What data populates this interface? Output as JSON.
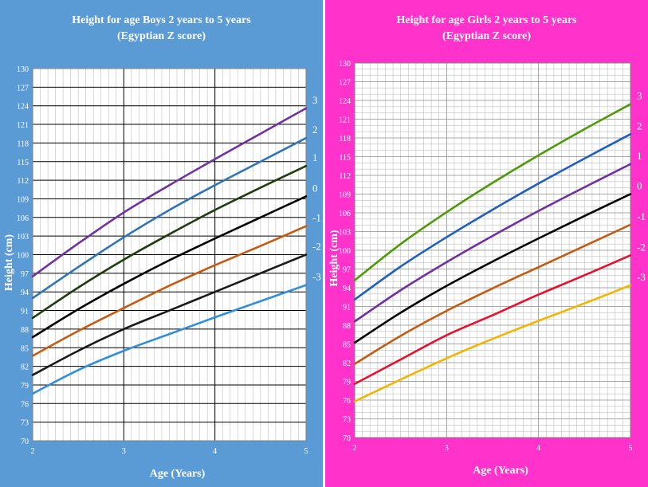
{
  "colors": {
    "boys_panel_bg": "#5B9BD5",
    "girls_panel_bg": "#FF33CC",
    "plot_bg": "#ffffff",
    "grid_major": "#000000",
    "grid_minor": "#bfbfbf"
  },
  "chart_data": [
    {
      "type": "line",
      "title": "Height for age Boys 2 years to 5 years",
      "subtitle": "(Egyptian Z score)",
      "xlabel": "Age (Years)",
      "ylabel": "Height  (cm)",
      "xlim": [
        2,
        5
      ],
      "ylim": [
        70,
        130
      ],
      "x_ticks": [
        "2",
        "3",
        "4",
        "5"
      ],
      "y_ticks": [
        "70",
        "73",
        "76",
        "79",
        "82",
        "85",
        "88",
        "91",
        "94",
        "97",
        "100",
        "103",
        "106",
        "109",
        "112",
        "115",
        "118",
        "121",
        "124",
        "127",
        "130"
      ],
      "grid": true,
      "minor_x_lines_per_year": 12,
      "y_grid": "major_only",
      "series": [
        {
          "name": "3",
          "color": "#7030A0",
          "x": [
            2,
            2.5,
            3,
            3.5,
            4,
            4.5,
            5
          ],
          "y": [
            96.5,
            101.8,
            106.8,
            111.2,
            115.4,
            119.5,
            123.6
          ]
        },
        {
          "name": "2",
          "color": "#2E75B6",
          "x": [
            2,
            2.5,
            3,
            3.5,
            4,
            4.5,
            5
          ],
          "y": [
            93.0,
            98.0,
            102.8,
            107.2,
            111.2,
            115.0,
            118.8
          ]
        },
        {
          "name": "1",
          "color": "#1E3D0F",
          "x": [
            2,
            2.5,
            3,
            3.5,
            4,
            4.5,
            5
          ],
          "y": [
            89.8,
            94.7,
            99.2,
            103.3,
            107.2,
            110.8,
            114.3
          ]
        },
        {
          "name": "0",
          "color": "#000000",
          "x": [
            2,
            2.5,
            3,
            3.5,
            4,
            4.5,
            5
          ],
          "y": [
            86.7,
            91.2,
            95.3,
            99.1,
            102.6,
            106.0,
            109.4
          ]
        },
        {
          "name": "-1",
          "color": "#C55A11",
          "x": [
            2,
            2.5,
            3,
            3.5,
            4,
            4.5,
            5
          ],
          "y": [
            83.7,
            87.7,
            91.4,
            95.0,
            98.3,
            101.4,
            104.6
          ]
        },
        {
          "name": "-2",
          "color": "#1A1A1A",
          "x": [
            2,
            2.5,
            3,
            3.5,
            4,
            4.5,
            5
          ],
          "y": [
            80.6,
            84.5,
            88.0,
            91.0,
            94.0,
            97.0,
            100.0
          ]
        },
        {
          "name": "-3",
          "color": "#2F8FD8",
          "x": [
            2,
            2.5,
            3,
            3.5,
            4,
            4.5,
            5
          ],
          "y": [
            77.6,
            81.4,
            84.5,
            87.2,
            89.9,
            92.5,
            95.1
          ]
        }
      ]
    },
    {
      "type": "line",
      "title": "Height for age Girls 2 years to 5 years",
      "subtitle": "(Egyptian Z score)",
      "xlabel": "Age (Years)",
      "ylabel": "Height  (cm)",
      "xlim": [
        2,
        5
      ],
      "ylim": [
        70,
        130
      ],
      "x_ticks": [
        "2",
        "3",
        "4",
        "5"
      ],
      "y_ticks": [
        "70",
        "73",
        "76",
        "79",
        "82",
        "85",
        "88",
        "91",
        "94",
        "97",
        "100",
        "103",
        "106",
        "109",
        "112",
        "115",
        "118",
        "121",
        "124",
        "127",
        "130"
      ],
      "grid": true,
      "minor_x_lines_per_year": 12,
      "minor_y_lines_per_tick": 3,
      "series": [
        {
          "name": "3",
          "color": "#4E9A06",
          "x": [
            2,
            2.5,
            3,
            3.5,
            4,
            4.5,
            5
          ],
          "y": [
            95.2,
            101.0,
            106.1,
            110.8,
            115.2,
            119.4,
            123.4
          ]
        },
        {
          "name": "2",
          "color": "#1F5FBF",
          "x": [
            2,
            2.5,
            3,
            3.5,
            4,
            4.5,
            5
          ],
          "y": [
            92.1,
            97.4,
            102.1,
            106.5,
            110.7,
            114.7,
            118.6
          ]
        },
        {
          "name": "1",
          "color": "#7030A0",
          "x": [
            2,
            2.5,
            3,
            3.5,
            4,
            4.5,
            5
          ],
          "y": [
            88.6,
            93.6,
            98.1,
            102.3,
            106.3,
            110.1,
            113.8
          ]
        },
        {
          "name": "0",
          "color": "#000000",
          "x": [
            2,
            2.5,
            3,
            3.5,
            4,
            4.5,
            5
          ],
          "y": [
            85.2,
            90.0,
            94.3,
            98.2,
            101.9,
            105.5,
            109.0
          ]
        },
        {
          "name": "-1",
          "color": "#C55A11",
          "x": [
            2,
            2.5,
            3,
            3.5,
            4,
            4.5,
            5
          ],
          "y": [
            81.8,
            86.3,
            90.3,
            93.9,
            97.3,
            100.7,
            104.1
          ]
        },
        {
          "name": "-2",
          "color": "#E8112D",
          "x": [
            2,
            2.5,
            3,
            3.5,
            4,
            4.5,
            5
          ],
          "y": [
            78.6,
            82.5,
            86.4,
            89.6,
            92.9,
            96.0,
            99.2
          ]
        },
        {
          "name": "-3",
          "color": "#F4B400",
          "x": [
            2,
            2.5,
            3,
            3.5,
            4,
            4.5,
            5
          ],
          "y": [
            75.8,
            79.3,
            82.7,
            85.8,
            88.7,
            91.5,
            94.4
          ]
        }
      ]
    }
  ]
}
